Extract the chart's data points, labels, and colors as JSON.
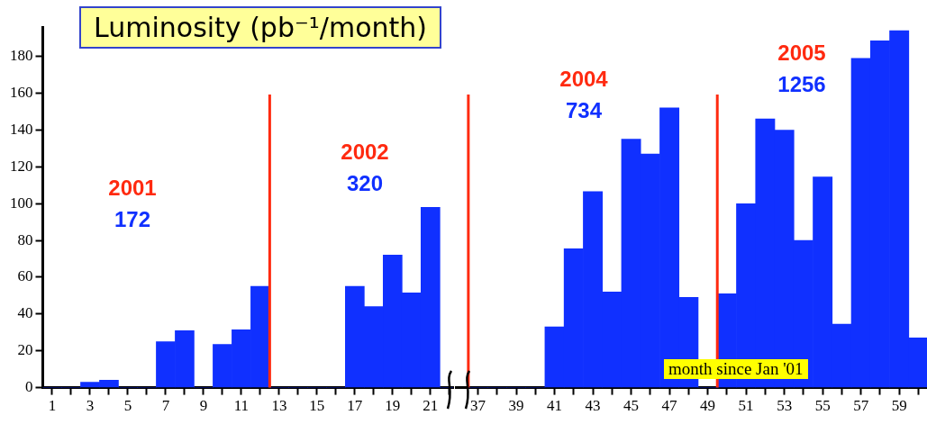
{
  "chart_data": [
    {
      "type": "bar",
      "title": "Luminosity (pb⁻¹/month)",
      "x": [
        1,
        2,
        3,
        4,
        5,
        6,
        7,
        8,
        9,
        10,
        11,
        12,
        13,
        14,
        15,
        16,
        17,
        18,
        19,
        20,
        21,
        22
      ],
      "series": [
        {
          "color": "#1030ff",
          "values": [
            0,
            0,
            3,
            4,
            0,
            0,
            25,
            31,
            0,
            23.5,
            31.5,
            55,
            0,
            0,
            0,
            0,
            55,
            44,
            72,
            51.5,
            98,
            0
          ]
        }
      ],
      "xlim": [
        0.5,
        22.2
      ],
      "xticks": [
        1,
        {
          "value": 2,
          "label": null
        },
        3,
        {
          "value": 4,
          "label": null
        },
        5,
        {
          "value": 6,
          "label": null
        },
        7,
        {
          "value": 8,
          "label": null
        },
        9,
        {
          "value": 10,
          "label": null
        },
        11,
        {
          "value": 12,
          "label": null
        },
        13,
        {
          "value": 14,
          "label": null
        },
        15,
        {
          "value": 16,
          "label": null
        },
        17,
        {
          "value": 18,
          "label": null
        },
        19,
        {
          "value": 20,
          "label": null
        },
        21,
        {
          "value": 22,
          "label": null
        }
      ],
      "ylim": [
        0,
        196
      ],
      "yticks": [
        0,
        20,
        40,
        60,
        80,
        100,
        120,
        140,
        160,
        180
      ],
      "grid": false,
      "legend": false,
      "ref_lines": [
        {
          "axis": "x",
          "value": 12.5,
          "color": "#ff2a10"
        }
      ],
      "annotations": [
        "2001",
        "172",
        "2002",
        "320"
      ]
    },
    {
      "type": "bar",
      "xlabel": "month since Jan '01",
      "x": [
        37,
        38,
        39,
        40,
        41,
        42,
        43,
        44,
        45,
        46,
        47,
        48,
        49,
        50,
        51,
        52,
        53,
        54,
        55,
        56,
        57,
        58,
        59,
        60
      ],
      "series": [
        {
          "color": "#1030ff",
          "values": [
            0,
            0,
            0,
            0,
            33,
            75.5,
            106.5,
            52,
            135,
            127,
            152,
            49,
            0,
            51,
            100,
            146,
            140,
            80,
            114.5,
            34.5,
            179,
            188.5,
            194,
            27
          ]
        }
      ],
      "xlim": [
        35.8,
        60.45
      ],
      "xticks": [
        37,
        {
          "value": 38,
          "label": null
        },
        39,
        {
          "value": 40,
          "label": null
        },
        41,
        {
          "value": 42,
          "label": null
        },
        43,
        {
          "value": 44,
          "label": null
        },
        45,
        {
          "value": 46,
          "label": null
        },
        47,
        {
          "value": 48,
          "label": null
        },
        49,
        {
          "value": 50,
          "label": null
        },
        51,
        {
          "value": 52,
          "label": null
        },
        53,
        {
          "value": 54,
          "label": null
        },
        55,
        {
          "value": 56,
          "label": null
        },
        57,
        {
          "value": 58,
          "label": null
        },
        59,
        {
          "value": 60,
          "label": null
        }
      ],
      "yticks": [
        0,
        20,
        40,
        60,
        80,
        100,
        120,
        140,
        160,
        180
      ],
      "tick_labels": "x",
      "grid": false,
      "legend": false,
      "ref_lines": [
        {
          "axis": "x",
          "value": 36.5,
          "color": "#ff2a10"
        },
        {
          "axis": "x",
          "value": 49.5,
          "color": "#ff2a10"
        }
      ],
      "annotations": [
        "2004",
        "734",
        "2005",
        "1256"
      ]
    }
  ]
}
